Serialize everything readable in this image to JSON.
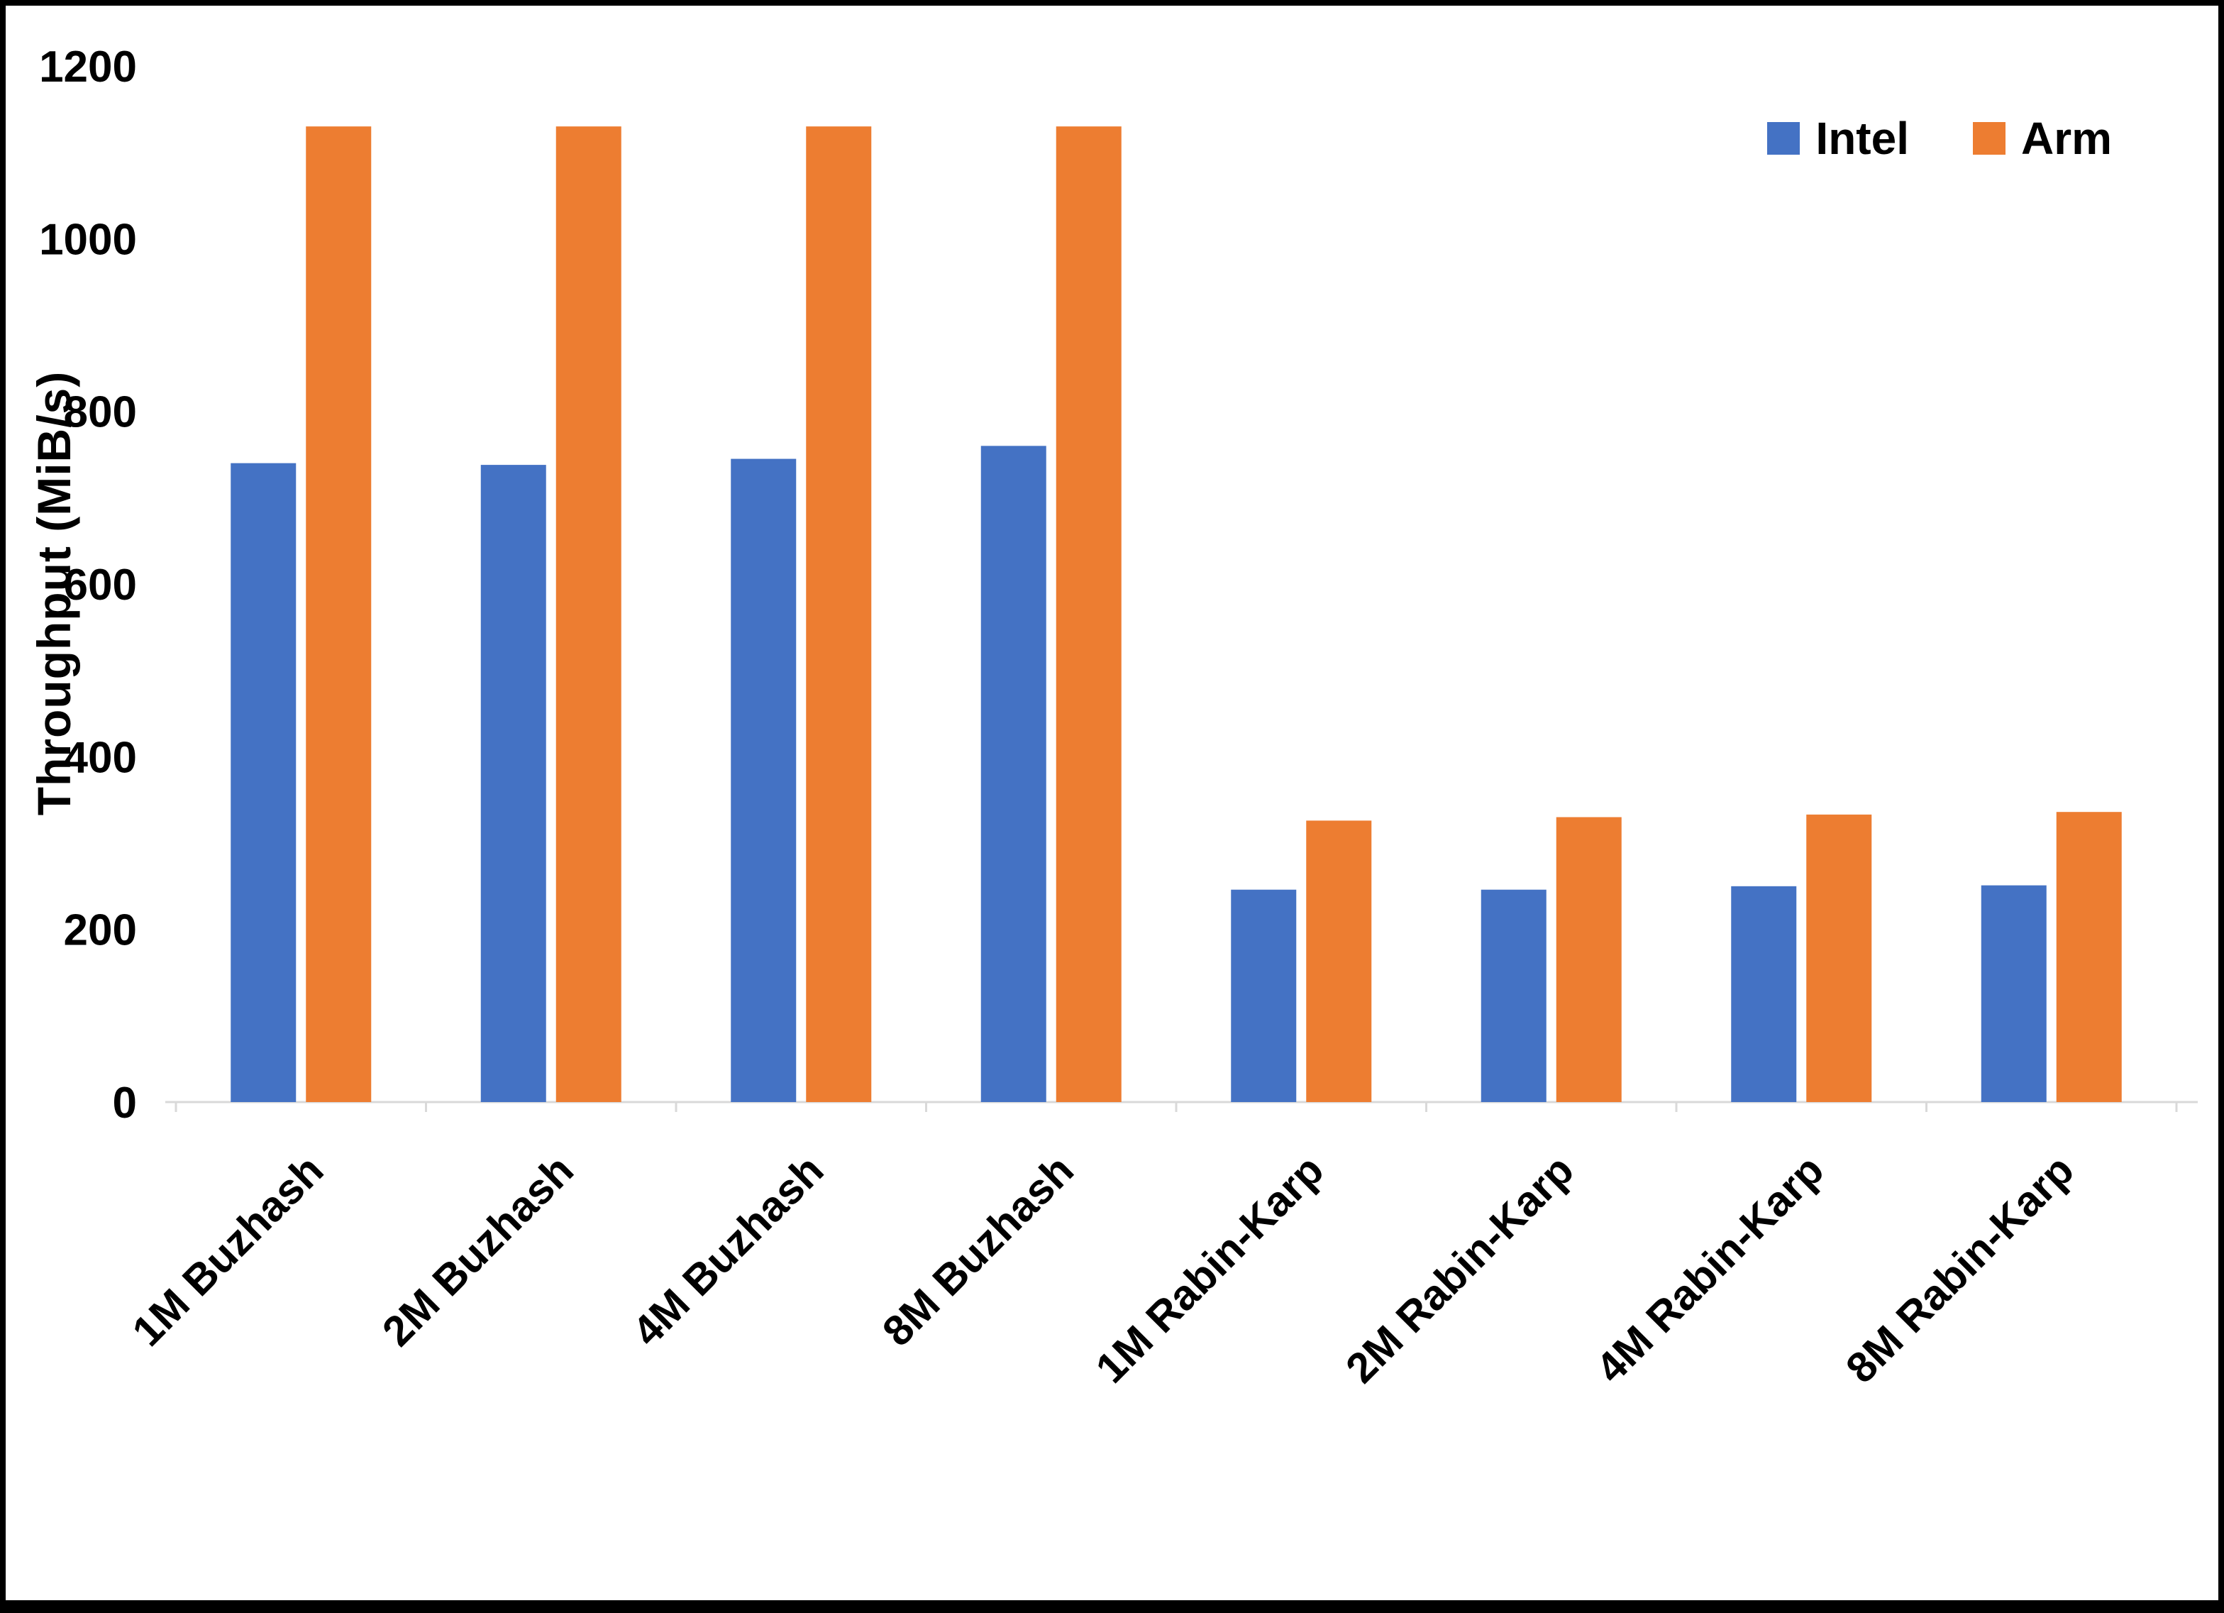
{
  "chart_data": {
    "type": "bar",
    "categories": [
      "1M Buzhash",
      "2M Buzhash",
      "4M Buzhash",
      "8M Buzhash",
      "1M Rabin-Karp",
      "2M Rabin-Karp",
      "4M Rabin-Karp",
      "8M Rabin-Karp"
    ],
    "series": [
      {
        "name": "Intel",
        "color": "#4472C4",
        "values": [
          740,
          738,
          745,
          760,
          246,
          246,
          250,
          251
        ]
      },
      {
        "name": "Arm",
        "color": "#ED7D31",
        "values": [
          1130,
          1130,
          1130,
          1130,
          326,
          330,
          333,
          336
        ]
      }
    ],
    "title": "",
    "xlabel": "",
    "ylabel": "Throughput (MiB/s)",
    "ylim": [
      0,
      1200
    ],
    "ytick_step": 200,
    "grid": false,
    "legend_position": "top-right",
    "axis_line_color": "#D9D9D9"
  }
}
